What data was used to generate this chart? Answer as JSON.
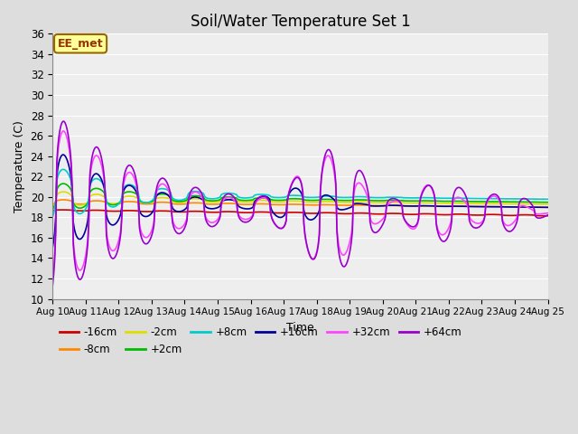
{
  "title": "Soil/Water Temperature Set 1",
  "xlabel": "Time",
  "ylabel": "Temperature (C)",
  "ylim": [
    10,
    36
  ],
  "annotation": "EE_met",
  "x_tick_labels": [
    "Aug 10",
    "Aug 11",
    "Aug 12",
    "Aug 13",
    "Aug 14",
    "Aug 15",
    "Aug 16",
    "Aug 17",
    "Aug 18",
    "Aug 19",
    "Aug 20",
    "Aug 21",
    "Aug 22",
    "Aug 23",
    "Aug 24",
    "Aug 25"
  ],
  "series": [
    {
      "label": "-16cm",
      "color": "#cc0000"
    },
    {
      "label": "-8cm",
      "color": "#ff8800"
    },
    {
      "label": "-2cm",
      "color": "#dddd00"
    },
    {
      "label": "+2cm",
      "color": "#00bb00"
    },
    {
      "label": "+8cm",
      "color": "#00cccc"
    },
    {
      "label": "+16cm",
      "color": "#000099"
    },
    {
      "label": "+32cm",
      "color": "#ff44ff"
    },
    {
      "label": "+64cm",
      "color": "#9900cc"
    }
  ],
  "background_color": "#dddddd",
  "plot_bg_color": "#eeeeee",
  "grid_color": "#ffffff",
  "title_fontsize": 12,
  "annotation_bg": "#ffff99",
  "annotation_border": "#996600"
}
